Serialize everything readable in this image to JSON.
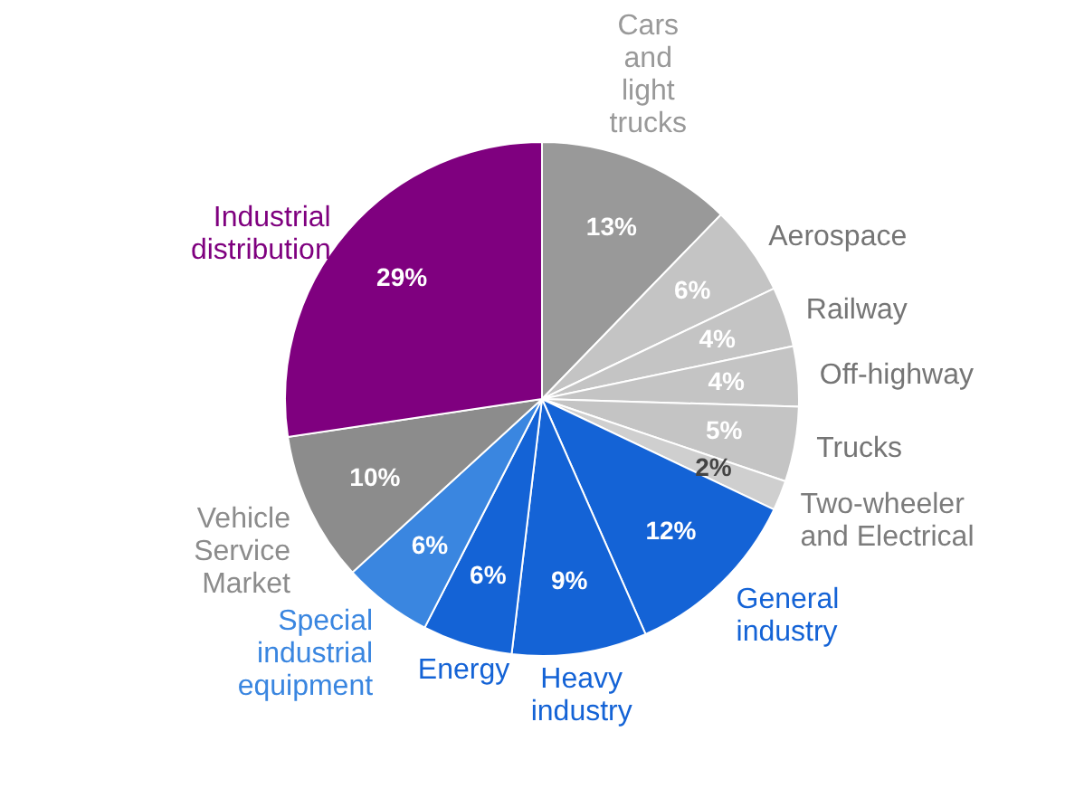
{
  "chart_data": {
    "type": "pie",
    "categories": [
      "Cars\nand\nlight\ntrucks",
      "Aerospace",
      "Railway",
      "Off-highway",
      "Trucks",
      "Two-wheeler\nand Electrical",
      "General\nindustry",
      "Heavy\nindustry",
      "Energy",
      "Special\nindustrial\nequipment",
      "Vehicle\nService\nMarket",
      "Industrial\ndistribution"
    ],
    "values": [
      13,
      6,
      4,
      4,
      5,
      2,
      12,
      9,
      6,
      6,
      10,
      29
    ],
    "value_labels": [
      "13%",
      "6%",
      "4%",
      "4%",
      "5%",
      "2%",
      "12%",
      "9%",
      "6%",
      "6%",
      "10%",
      "29%"
    ],
    "colors": [
      "#999999",
      "#c4c4c4",
      "#c4c4c4",
      "#c4c4c4",
      "#c4c4c4",
      "#cfcfcf",
      "#1463d6",
      "#1463d6",
      "#1463d6",
      "#3a86e0",
      "#8c8c8c",
      "#7f007f"
    ]
  }
}
